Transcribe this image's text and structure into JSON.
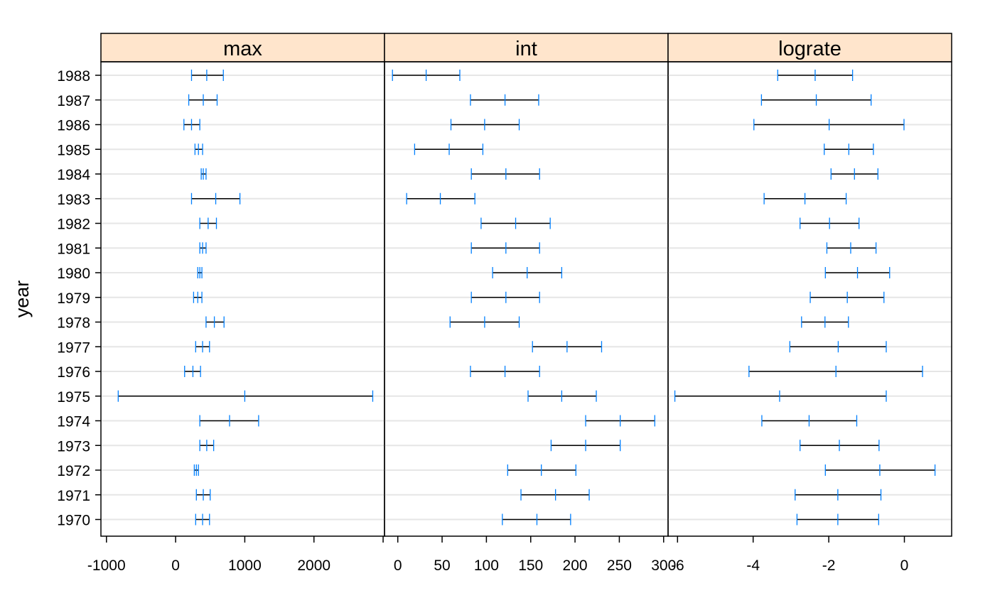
{
  "chart_data": {
    "type": "dotplot-intervals",
    "ylabel": "year",
    "years": [
      "1988",
      "1987",
      "1986",
      "1985",
      "1984",
      "1983",
      "1982",
      "1981",
      "1980",
      "1979",
      "1978",
      "1977",
      "1976",
      "1975",
      "1974",
      "1973",
      "1972",
      "1971",
      "1970"
    ],
    "colors": {
      "strip_bg": "#ffe5cc",
      "interval_line": "#000000",
      "tick_mark": "#0080ff",
      "grid": "#e6e6e6"
    },
    "grid": true,
    "panels": [
      {
        "name": "max",
        "xlim": [
          -1080,
          3020
        ],
        "ticks": [
          -1000,
          0,
          1000,
          2000
        ],
        "tick_labels": [
          "-1000",
          "0",
          "1000",
          "2000"
        ],
        "intervals": [
          {
            "year": "1988",
            "low": 230,
            "mid": 450,
            "high": 690
          },
          {
            "year": "1987",
            "low": 190,
            "mid": 400,
            "high": 600
          },
          {
            "year": "1986",
            "low": 120,
            "mid": 230,
            "high": 350
          },
          {
            "year": "1985",
            "low": 280,
            "mid": 330,
            "high": 390
          },
          {
            "year": "1984",
            "low": 370,
            "mid": 400,
            "high": 440
          },
          {
            "year": "1983",
            "low": 230,
            "mid": 580,
            "high": 930
          },
          {
            "year": "1982",
            "low": 350,
            "mid": 470,
            "high": 590
          },
          {
            "year": "1981",
            "low": 350,
            "mid": 390,
            "high": 440
          },
          {
            "year": "1980",
            "low": 320,
            "mid": 350,
            "high": 380
          },
          {
            "year": "1979",
            "low": 260,
            "mid": 320,
            "high": 380
          },
          {
            "year": "1978",
            "low": 440,
            "mid": 560,
            "high": 700
          },
          {
            "year": "1977",
            "low": 290,
            "mid": 390,
            "high": 490
          },
          {
            "year": "1976",
            "low": 130,
            "mid": 250,
            "high": 360
          },
          {
            "year": "1975",
            "low": -830,
            "mid": 1000,
            "high": 2850
          },
          {
            "year": "1974",
            "low": 350,
            "mid": 780,
            "high": 1200
          },
          {
            "year": "1973",
            "low": 350,
            "mid": 450,
            "high": 550
          },
          {
            "year": "1972",
            "low": 270,
            "mid": 300,
            "high": 330
          },
          {
            "year": "1971",
            "low": 300,
            "mid": 400,
            "high": 500
          },
          {
            "year": "1970",
            "low": 290,
            "mid": 390,
            "high": 490
          }
        ]
      },
      {
        "name": "int",
        "xlim": [
          -15,
          305
        ],
        "ticks": [
          0,
          50,
          100,
          150,
          200,
          250,
          300
        ],
        "tick_labels": [
          "0",
          "50",
          "100",
          "150",
          "200",
          "250",
          "300"
        ],
        "intervals": [
          {
            "year": "1988",
            "low": -6,
            "mid": 32,
            "high": 70
          },
          {
            "year": "1987",
            "low": 82,
            "mid": 121,
            "high": 159
          },
          {
            "year": "1986",
            "low": 60,
            "mid": 98,
            "high": 137
          },
          {
            "year": "1985",
            "low": 19,
            "mid": 58,
            "high": 96
          },
          {
            "year": "1984",
            "low": 83,
            "mid": 122,
            "high": 160
          },
          {
            "year": "1983",
            "low": 10,
            "mid": 48,
            "high": 87
          },
          {
            "year": "1982",
            "low": 94,
            "mid": 133,
            "high": 172
          },
          {
            "year": "1981",
            "low": 83,
            "mid": 122,
            "high": 160
          },
          {
            "year": "1980",
            "low": 107,
            "mid": 146,
            "high": 185
          },
          {
            "year": "1979",
            "low": 83,
            "mid": 122,
            "high": 160
          },
          {
            "year": "1978",
            "low": 59,
            "mid": 98,
            "high": 137
          },
          {
            "year": "1977",
            "low": 152,
            "mid": 191,
            "high": 230
          },
          {
            "year": "1976",
            "low": 82,
            "mid": 121,
            "high": 160
          },
          {
            "year": "1975",
            "low": 147,
            "mid": 185,
            "high": 224
          },
          {
            "year": "1974",
            "low": 212,
            "mid": 251,
            "high": 290
          },
          {
            "year": "1973",
            "low": 173,
            "mid": 212,
            "high": 251
          },
          {
            "year": "1972",
            "low": 124,
            "mid": 162,
            "high": 201
          },
          {
            "year": "1971",
            "low": 139,
            "mid": 178,
            "high": 216
          },
          {
            "year": "1970",
            "low": 118,
            "mid": 157,
            "high": 195
          }
        ]
      },
      {
        "name": "lograte",
        "xlim": [
          -6.25,
          1.25
        ],
        "ticks": [
          -6,
          -4,
          -2,
          0
        ],
        "tick_labels": [
          "-6",
          "-4",
          "-2",
          "0"
        ],
        "intervals": [
          {
            "year": "1988",
            "low": -3.35,
            "mid": -2.36,
            "high": -1.37
          },
          {
            "year": "1987",
            "low": -3.78,
            "mid": -2.33,
            "high": -0.88
          },
          {
            "year": "1986",
            "low": -3.98,
            "mid": -1.99,
            "high": -0.01
          },
          {
            "year": "1985",
            "low": -2.12,
            "mid": -1.47,
            "high": -0.82
          },
          {
            "year": "1984",
            "low": -1.94,
            "mid": -1.32,
            "high": -0.7
          },
          {
            "year": "1983",
            "low": -3.71,
            "mid": -2.63,
            "high": -1.54
          },
          {
            "year": "1982",
            "low": -2.76,
            "mid": -1.98,
            "high": -1.2
          },
          {
            "year": "1981",
            "low": -2.05,
            "mid": -1.42,
            "high": -0.75
          },
          {
            "year": "1980",
            "low": -2.09,
            "mid": -1.24,
            "high": -0.39
          },
          {
            "year": "1979",
            "low": -2.49,
            "mid": -1.51,
            "high": -0.54
          },
          {
            "year": "1978",
            "low": -2.72,
            "mid": -2.1,
            "high": -1.48
          },
          {
            "year": "1977",
            "low": -3.03,
            "mid": -1.75,
            "high": -0.48
          },
          {
            "year": "1976",
            "low": -4.11,
            "mid": -1.81,
            "high": 0.48
          },
          {
            "year": "1975",
            "low": -6.07,
            "mid": -3.3,
            "high": -0.48
          },
          {
            "year": "1974",
            "low": -3.77,
            "mid": -2.52,
            "high": -1.26
          },
          {
            "year": "1973",
            "low": -2.76,
            "mid": -1.72,
            "high": -0.67
          },
          {
            "year": "1972",
            "low": -2.09,
            "mid": -0.65,
            "high": 0.81
          },
          {
            "year": "1971",
            "low": -2.89,
            "mid": -1.76,
            "high": -0.62
          },
          {
            "year": "1970",
            "low": -2.84,
            "mid": -1.76,
            "high": -0.68
          }
        ]
      }
    ]
  }
}
